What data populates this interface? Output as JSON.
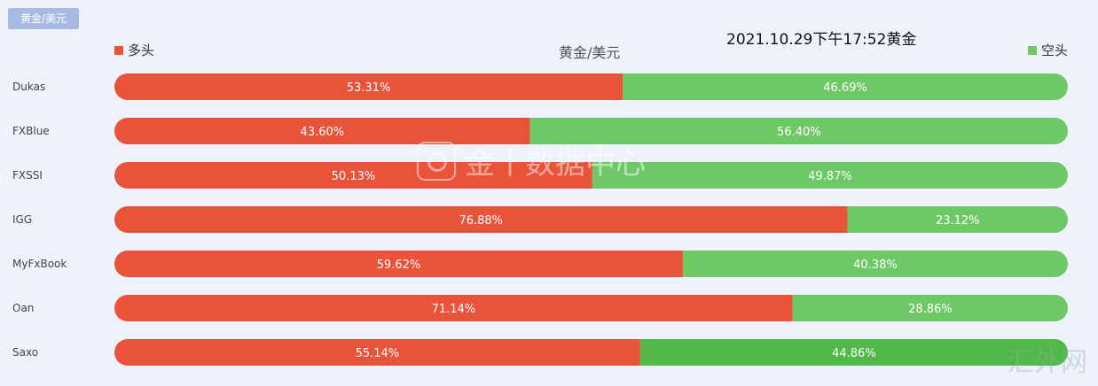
{
  "tab": {
    "label": "黄金/美元"
  },
  "timestamp": "2021.10.29下午17:52黄金",
  "watermarks": {
    "center": "金十数据中心",
    "corner": "汇外网"
  },
  "colors": {
    "long": "#e8533a",
    "short": "#6fc866",
    "short_highlight": "#52b848",
    "tab": "#a9b9e6",
    "background": "#eef2fa"
  },
  "chart_data": {
    "type": "bar",
    "orientation": "horizontal",
    "stacked": true,
    "normalized": true,
    "title": "黄金/美元",
    "legend": {
      "long": "多头",
      "short": "空头",
      "placement": "top"
    },
    "categories": [
      "Dukas",
      "FXBlue",
      "FXSSI",
      "IGG",
      "MyFxBook",
      "Oan",
      "Saxo"
    ],
    "series": [
      {
        "name": "多头",
        "values": [
          53.31,
          43.6,
          50.13,
          76.88,
          59.62,
          71.14,
          55.14
        ],
        "labels": [
          "53.31%",
          "43.60%",
          "50.13%",
          "76.88%",
          "59.62%",
          "71.14%",
          "55.14%"
        ]
      },
      {
        "name": "空头",
        "values": [
          46.69,
          56.4,
          49.87,
          23.12,
          40.38,
          28.86,
          44.86
        ],
        "labels": [
          "46.69%",
          "56.40%",
          "49.87%",
          "23.12%",
          "40.38%",
          "28.86%",
          "44.86%"
        ]
      }
    ],
    "xlim": [
      0,
      100
    ]
  }
}
